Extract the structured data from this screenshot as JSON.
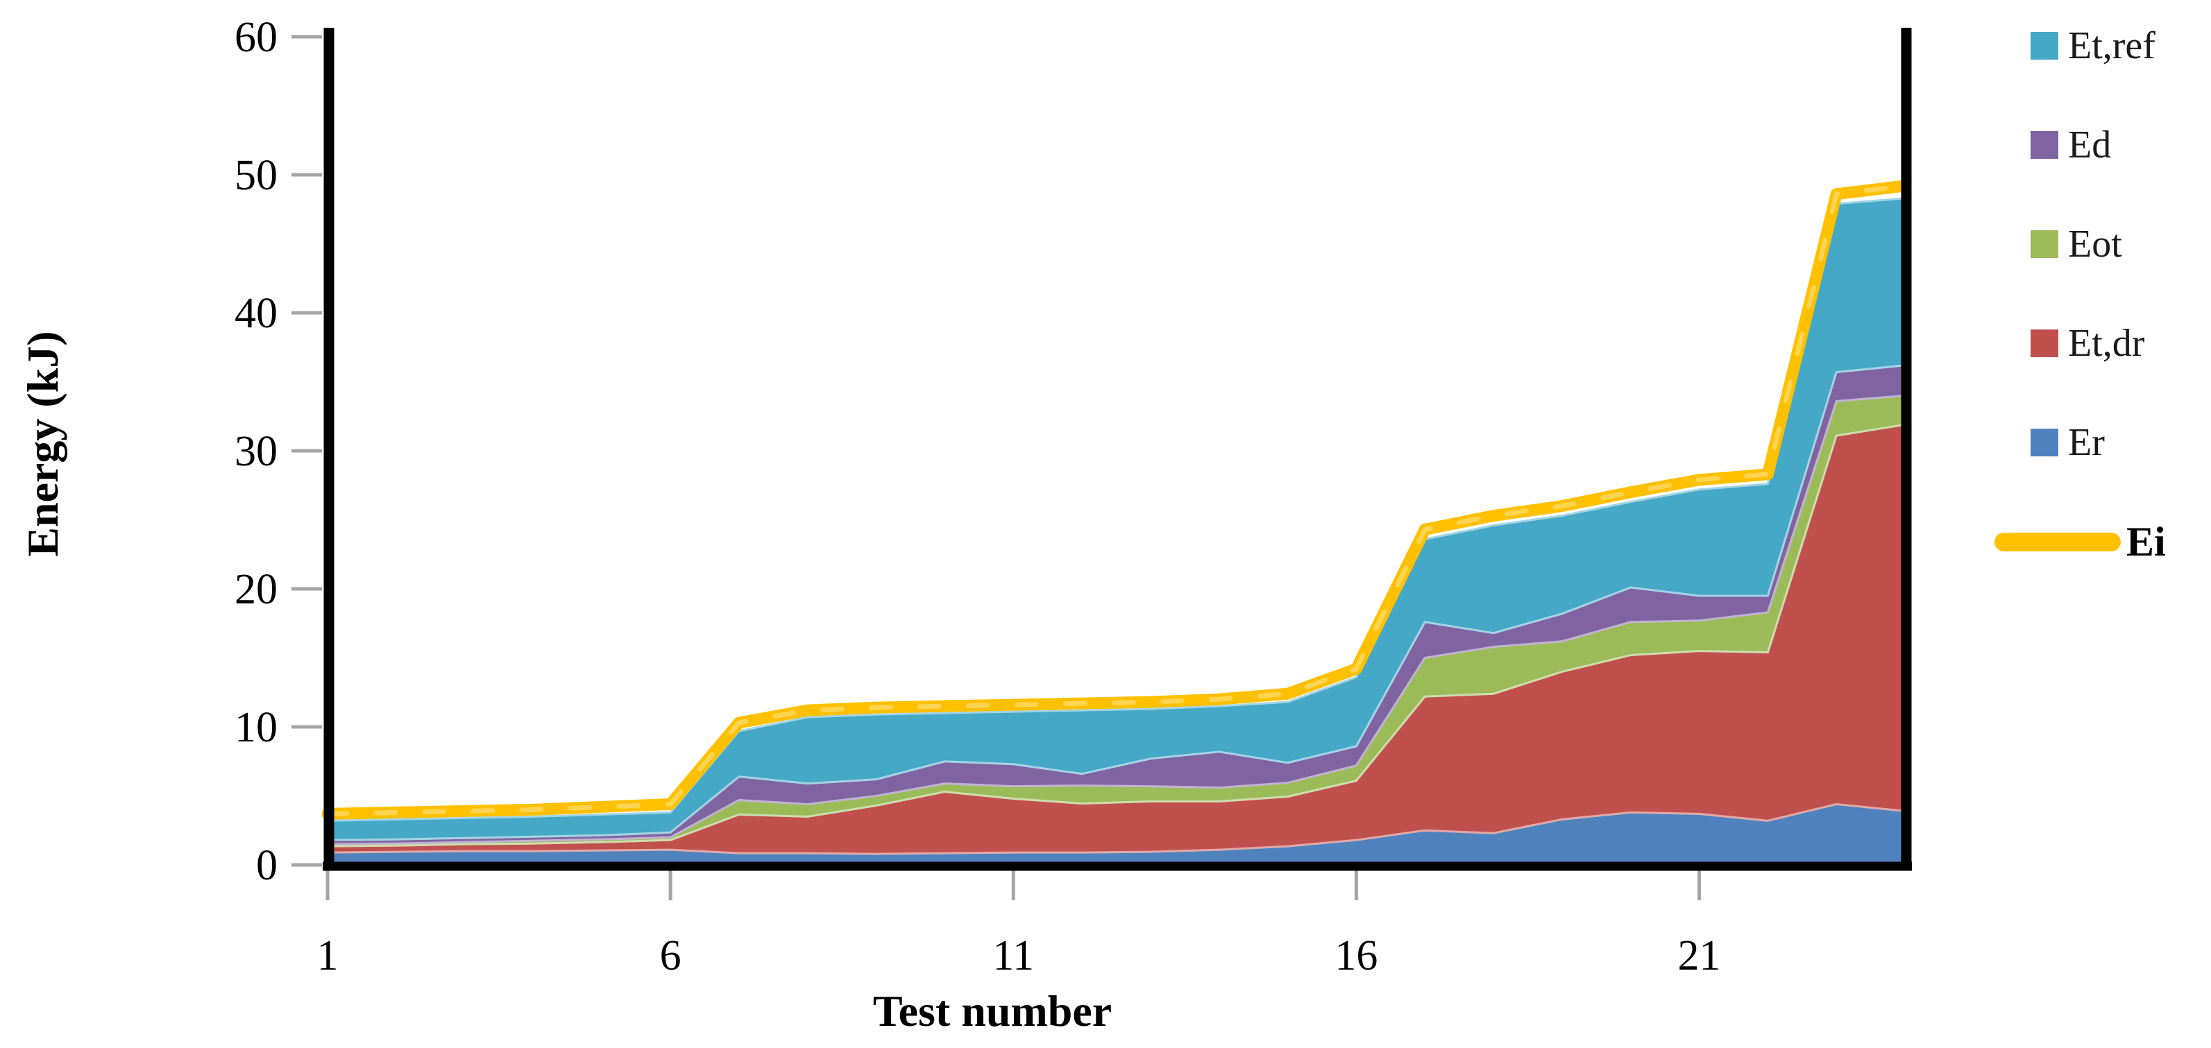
{
  "chart_data": {
    "type": "area",
    "stacked": true,
    "title": "",
    "xlabel": "Test number",
    "ylabel": "Energy (kJ)",
    "legend_position": "right",
    "grid": false,
    "xlim": [
      1,
      24
    ],
    "ylim": [
      0,
      60
    ],
    "x": [
      1,
      2,
      3,
      4,
      5,
      6,
      7,
      8,
      9,
      10,
      11,
      12,
      13,
      14,
      15,
      16,
      17,
      18,
      19,
      20,
      21,
      22,
      23,
      24
    ],
    "x_tick_values": [
      1,
      6,
      11,
      16,
      21
    ],
    "x_tick_labels": [
      "1",
      "6",
      "11",
      "16",
      "21"
    ],
    "y_tick_values": [
      0,
      10,
      20,
      30,
      40,
      50,
      60
    ],
    "y_tick_labels": [
      "0",
      "10",
      "20",
      "30",
      "40",
      "50",
      "60"
    ],
    "series": [
      {
        "name": "Er",
        "kind": "area",
        "color": "#4F81BD",
        "values": [
          0.9,
          0.95,
          1.0,
          1.0,
          1.05,
          1.1,
          0.85,
          0.85,
          0.8,
          0.85,
          0.9,
          0.9,
          0.95,
          1.1,
          1.35,
          1.8,
          2.5,
          2.3,
          3.3,
          3.8,
          3.7,
          3.2,
          4.4,
          3.9
        ]
      },
      {
        "name": "Et,dr",
        "kind": "area",
        "color": "#C0504D",
        "values": [
          0.45,
          0.45,
          0.5,
          0.55,
          0.6,
          0.7,
          2.8,
          2.65,
          3.5,
          4.45,
          3.9,
          3.55,
          3.65,
          3.5,
          3.6,
          4.3,
          9.7,
          10.1,
          10.7,
          11.4,
          11.8,
          12.2,
          26.7,
          28.0
        ]
      },
      {
        "name": "Eot",
        "kind": "area",
        "color": "#9BBB59",
        "values": [
          0.15,
          0.15,
          0.15,
          0.2,
          0.2,
          0.2,
          1.05,
          0.9,
          0.7,
          0.6,
          0.9,
          1.3,
          1.1,
          1.0,
          1.0,
          1.1,
          2.8,
          3.4,
          2.2,
          2.4,
          2.2,
          2.9,
          2.5,
          2.1
        ]
      },
      {
        "name": "Ed",
        "kind": "area",
        "color": "#8064A2",
        "values": [
          0.3,
          0.3,
          0.3,
          0.3,
          0.3,
          0.35,
          1.7,
          1.5,
          1.2,
          1.6,
          1.6,
          0.85,
          2.0,
          2.6,
          1.45,
          1.4,
          2.6,
          1.0,
          2.0,
          2.5,
          1.8,
          1.2,
          2.1,
          2.2
        ]
      },
      {
        "name": "Et,ref",
        "kind": "area",
        "color": "#44A8C6",
        "values": [
          1.4,
          1.45,
          1.45,
          1.45,
          1.5,
          1.45,
          3.3,
          4.8,
          4.7,
          3.5,
          3.8,
          4.6,
          3.6,
          3.3,
          4.4,
          5.0,
          6.0,
          7.8,
          7.1,
          6.2,
          7.7,
          8.1,
          12.2,
          12.1
        ]
      },
      {
        "name": "Ei",
        "kind": "line",
        "color": "#FFC000",
        "values": [
          3.7,
          3.8,
          3.9,
          4.0,
          4.2,
          4.4,
          10.3,
          11.2,
          11.4,
          11.5,
          11.6,
          11.7,
          11.8,
          12.0,
          12.4,
          14.2,
          24.3,
          25.3,
          26.0,
          27.0,
          27.9,
          28.3,
          48.6,
          49.2
        ]
      }
    ],
    "legend": [
      {
        "label": "Et,ref",
        "color": "#44A8C6",
        "marker": "square",
        "bold": false
      },
      {
        "label": "Ed",
        "color": "#8064A2",
        "marker": "square",
        "bold": false
      },
      {
        "label": "Eot",
        "color": "#9BBB59",
        "marker": "square",
        "bold": false
      },
      {
        "label": "Et,dr",
        "color": "#C0504D",
        "marker": "square",
        "bold": false
      },
      {
        "label": "Er",
        "color": "#4F81BD",
        "marker": "square",
        "bold": false
      },
      {
        "label": "Ei",
        "color": "#FFC000",
        "marker": "line",
        "bold": true
      }
    ]
  },
  "colors": {
    "background": "#FFFFFF",
    "axis_line": "#000000",
    "tick_mark": "#A6A6A6",
    "tick_text": "#000000",
    "ei_line": "#FFC000",
    "ei_line_dash": "#FFD75E"
  }
}
